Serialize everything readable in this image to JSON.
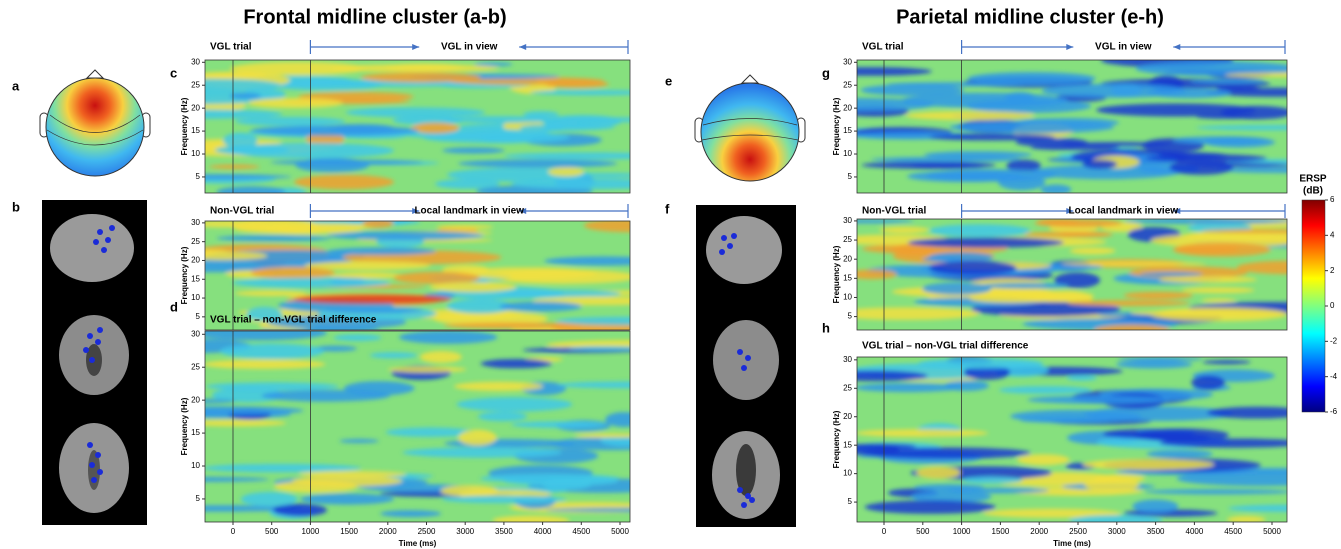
{
  "titles": [
    "Frontal midline cluster (a-b)",
    "Parietal midline cluster (e-h)"
  ],
  "panel_labels": [
    "a",
    "b",
    "c",
    "d",
    "e",
    "f",
    "g",
    "h"
  ],
  "panels": [
    {
      "header": "VGL trial",
      "banner": "VGL in view"
    },
    {
      "header": "Non-VGL trial",
      "banner": "Local landmark in view"
    },
    {
      "header": "VGL trial – non-VGL trial difference"
    },
    {
      "header": "VGL trial",
      "banner": "VGL in view"
    },
    {
      "header": "Non-VGL trial",
      "banner": "Local landmark in view"
    },
    {
      "header": "VGL trial – non-VGL trial difference"
    }
  ],
  "y_axis_label": "Frequency (Hz)",
  "yticks": [
    5,
    10,
    15,
    20,
    25,
    30
  ],
  "x_axis_label": "Time (ms)",
  "xticks": [
    0,
    500,
    1000,
    1500,
    2000,
    2500,
    3000,
    3500,
    4000,
    4500,
    5000
  ],
  "colorbar": {
    "title_lines": [
      "ERSP",
      "(dB)"
    ],
    "ticks": [
      6,
      4,
      2,
      0,
      -2,
      -4,
      -6
    ]
  }
}
